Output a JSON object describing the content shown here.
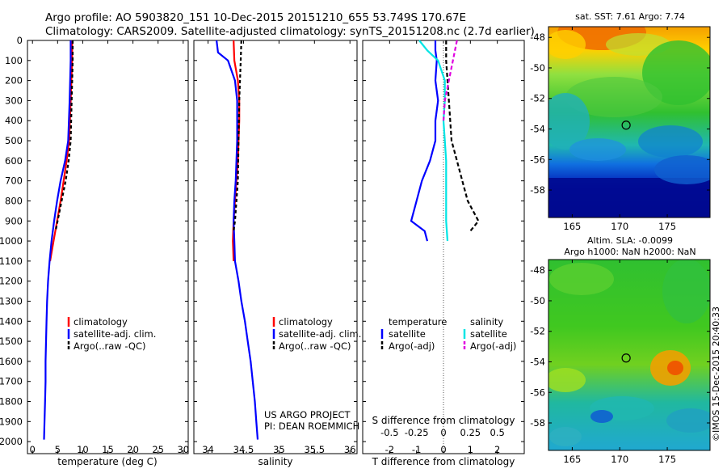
{
  "header": {
    "line1": "Argo profile: AO 5903820_151 10-Dec-2015 20151210_655 53.749S 170.67E",
    "line2": "Climatology: CARS2009. Satellite-adjusted climatology: synTS_20151208.nc (2.7d earlier)"
  },
  "colors": {
    "climatology": "#ff0000",
    "satellite": "#0000ff",
    "argo": "#000000",
    "salinity_satellite": "#00e5e5",
    "salinity_argo": "#e000e0"
  },
  "depth_axis": {
    "ticks": [
      0,
      100,
      200,
      300,
      400,
      500,
      600,
      700,
      800,
      900,
      1000,
      1100,
      1200,
      1300,
      1400,
      1500,
      1600,
      1700,
      1800,
      1900,
      2000
    ],
    "range": [
      0,
      2060
    ]
  },
  "chart_data": [
    {
      "id": "temperature-panel",
      "type": "line",
      "xlabel": "temperature (deg C)",
      "xlim": [
        -1,
        31
      ],
      "xticks": [
        0,
        5,
        10,
        15,
        20,
        25,
        30
      ],
      "ylim": [
        2060,
        0
      ],
      "legend": [
        "climatology",
        "satellite-adj. clim.",
        "Argo(..raw -QC)"
      ],
      "series": [
        {
          "name": "climatology",
          "color": "#ff0000",
          "dash": "",
          "points": [
            [
              7.9,
              0
            ],
            [
              7.9,
              100
            ],
            [
              7.6,
              300
            ],
            [
              7.3,
              500
            ],
            [
              6.8,
              600
            ],
            [
              6.2,
              700
            ],
            [
              5.6,
              800
            ],
            [
              4.9,
              900
            ],
            [
              4.2,
              1000
            ],
            [
              3.5,
              1100
            ]
          ]
        },
        {
          "name": "satellite-adj. clim.",
          "color": "#0000ff",
          "dash": "",
          "points": [
            [
              7.6,
              0
            ],
            [
              7.6,
              100
            ],
            [
              7.4,
              300
            ],
            [
              7.1,
              500
            ],
            [
              6.5,
              600
            ],
            [
              5.6,
              700
            ],
            [
              4.9,
              800
            ],
            [
              4.3,
              900
            ],
            [
              3.8,
              1000
            ],
            [
              3.4,
              1100
            ],
            [
              3.1,
              1200
            ],
            [
              2.9,
              1300
            ],
            [
              2.8,
              1400
            ],
            [
              2.7,
              1500
            ],
            [
              2.6,
              1600
            ],
            [
              2.6,
              1700
            ],
            [
              2.5,
              1800
            ],
            [
              2.4,
              1900
            ],
            [
              2.3,
              1990
            ]
          ]
        },
        {
          "name": "Argo(..raw -QC)",
          "color": "#000000",
          "dash": "4,3",
          "points": [
            [
              8.0,
              0
            ],
            [
              8.0,
              100
            ],
            [
              7.8,
              300
            ],
            [
              7.6,
              500
            ],
            [
              7.2,
              600
            ],
            [
              6.6,
              700
            ],
            [
              5.8,
              800
            ],
            [
              5.0,
              900
            ],
            [
              4.6,
              950
            ]
          ]
        }
      ]
    },
    {
      "id": "salinity-panel",
      "type": "line",
      "xlabel": "salinity",
      "xlim": [
        33.8,
        36.1
      ],
      "xticks": [
        34,
        34.5,
        35,
        35.5,
        36
      ],
      "ylim": [
        2060,
        0
      ],
      "legend": [
        "climatology",
        "satellite-adj. clim.",
        "Argo(..raw -QC)"
      ],
      "series": [
        {
          "name": "climatology",
          "color": "#ff0000",
          "dash": "",
          "points": [
            [
              34.36,
              0
            ],
            [
              34.37,
              100
            ],
            [
              34.42,
              200
            ],
            [
              34.44,
              300
            ],
            [
              34.44,
              400
            ],
            [
              34.43,
              500
            ],
            [
              34.42,
              600
            ],
            [
              34.4,
              700
            ],
            [
              34.38,
              800
            ],
            [
              34.36,
              900
            ],
            [
              34.35,
              1000
            ],
            [
              34.36,
              1100
            ]
          ]
        },
        {
          "name": "satellite-adj. clim.",
          "color": "#0000ff",
          "dash": "",
          "points": [
            [
              34.12,
              0
            ],
            [
              34.14,
              60
            ],
            [
              34.28,
              100
            ],
            [
              34.38,
              200
            ],
            [
              34.41,
              300
            ],
            [
              34.41,
              400
            ],
            [
              34.41,
              500
            ],
            [
              34.4,
              600
            ],
            [
              34.39,
              700
            ],
            [
              34.37,
              800
            ],
            [
              34.36,
              900
            ],
            [
              34.37,
              1000
            ],
            [
              34.38,
              1100
            ],
            [
              34.43,
              1200
            ],
            [
              34.47,
              1300
            ],
            [
              34.52,
              1400
            ],
            [
              34.56,
              1500
            ],
            [
              34.6,
              1600
            ],
            [
              34.63,
              1700
            ],
            [
              34.66,
              1800
            ],
            [
              34.68,
              1900
            ],
            [
              34.7,
              1990
            ]
          ]
        },
        {
          "name": "Argo(..raw -QC)",
          "color": "#000000",
          "dash": "4,3",
          "points": [
            [
              34.47,
              0
            ],
            [
              34.46,
              100
            ],
            [
              34.45,
              200
            ],
            [
              34.44,
              300
            ],
            [
              34.43,
              500
            ],
            [
              34.42,
              700
            ],
            [
              34.4,
              800
            ],
            [
              34.38,
              900
            ],
            [
              34.36,
              950
            ]
          ]
        }
      ]
    },
    {
      "id": "difference-panel",
      "type": "line",
      "xlabel": "T difference from climatology",
      "xlabel2": "S difference from climatology",
      "xlim": [
        -3,
        3
      ],
      "xticks": [
        -2,
        -1,
        0,
        1,
        2
      ],
      "xticks_top": [
        {
          "label": "-0.5",
          "x": -2
        },
        {
          "label": "-0.25",
          "x": -1
        },
        {
          "label": "0",
          "x": 0
        },
        {
          "label": "0.25",
          "x": 1
        },
        {
          "label": "0.5",
          "x": 2
        }
      ],
      "ylim": [
        2060,
        0
      ],
      "legend": {
        "temperature_title": "temperature",
        "salinity_title": "salinity",
        "items": [
          "satellite",
          "Argo(-adj)",
          "satellite",
          "Argo(-adj)"
        ]
      },
      "series": [
        {
          "name": "temperature satellite",
          "color": "#0000ff",
          "dash": "",
          "points": [
            [
              -0.3,
              0
            ],
            [
              -0.3,
              50
            ],
            [
              -0.25,
              100
            ],
            [
              -0.3,
              200
            ],
            [
              -0.2,
              300
            ],
            [
              -0.3,
              400
            ],
            [
              -0.3,
              500
            ],
            [
              -0.5,
              600
            ],
            [
              -0.8,
              700
            ],
            [
              -1.0,
              800
            ],
            [
              -1.2,
              900
            ],
            [
              -0.7,
              950
            ],
            [
              -0.6,
              1000
            ]
          ]
        },
        {
          "name": "temperature Argo(-adj)",
          "color": "#000000",
          "dash": "5,3",
          "points": [
            [
              0.1,
              0
            ],
            [
              0.1,
              100
            ],
            [
              0.2,
              300
            ],
            [
              0.3,
              500
            ],
            [
              0.5,
              600
            ],
            [
              0.7,
              700
            ],
            [
              0.9,
              800
            ],
            [
              1.3,
              900
            ],
            [
              1.0,
              950
            ]
          ]
        },
        {
          "name": "salinity satellite",
          "color": "#00e5e5",
          "dash": "",
          "points": [
            [
              -0.9,
              0
            ],
            [
              -0.6,
              50
            ],
            [
              -0.2,
              100
            ],
            [
              0.05,
              200
            ],
            [
              0.05,
              300
            ],
            [
              0.0,
              400
            ],
            [
              0.05,
              500
            ],
            [
              0.1,
              600
            ],
            [
              0.1,
              700
            ],
            [
              0.1,
              800
            ],
            [
              0.1,
              900
            ],
            [
              0.15,
              1000
            ]
          ]
        },
        {
          "name": "salinity Argo(-adj)",
          "color": "#e000e0",
          "dash": "5,3",
          "points": [
            [
              0.5,
              0
            ],
            [
              0.35,
              100
            ],
            [
              0.2,
              200
            ],
            [
              0.05,
              300
            ],
            [
              0.0,
              400
            ]
          ]
        }
      ]
    }
  ],
  "credits": {
    "line1": "US ARGO PROJECT",
    "line2": "PI: DEAN ROEMMICH"
  },
  "map_sst": {
    "title": "sat. SST: 7.61 Argo: 7.74",
    "xticks": [
      165,
      170,
      175
    ],
    "yticks": [
      -48,
      -50,
      -52,
      -54,
      -56,
      -58
    ],
    "lon_range": [
      162.5,
      179.5
    ],
    "lat_range": [
      -59.8,
      -47.3
    ],
    "marker": {
      "lon": 170.67,
      "lat": -53.749
    }
  },
  "map_sla": {
    "title1": "Altim. SLA: -0.0099",
    "title2": "Argo h1000: NaN h2000: NaN",
    "xticks": [
      165,
      170,
      175
    ],
    "yticks": [
      -48,
      -50,
      -52,
      -54,
      -56,
      -58
    ],
    "lon_range": [
      162.5,
      179.5
    ],
    "lat_range": [
      -59.8,
      -47.3
    ],
    "marker": {
      "lon": 170.67,
      "lat": -53.749
    }
  },
  "copyright": "©IMOS 15-Dec-2015 20:40:33"
}
